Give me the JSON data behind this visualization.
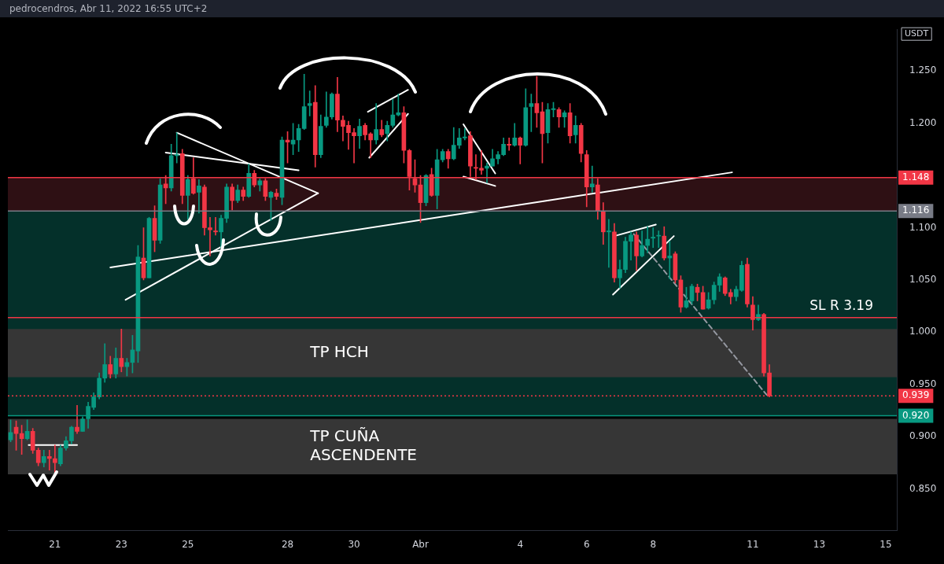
{
  "chart_data": {
    "type": "candlestick",
    "title": "pedrocendros, Abr 11, 2022 16:55 UTC+2",
    "ylabel": "USDT",
    "x": [
      "2022-03-19T16:00",
      "2022-03-19T20:00",
      "2022-03-20T00:00",
      "2022-03-20T04:00",
      "2022-03-20T08:00",
      "2022-03-20T12:00",
      "2022-03-20T16:00",
      "2022-03-20T20:00",
      "2022-03-21T00:00",
      "2022-03-21T04:00",
      "2022-03-21T08:00",
      "2022-03-21T12:00",
      "2022-03-21T16:00",
      "2022-03-21T20:00",
      "2022-03-22T00:00",
      "2022-03-22T04:00",
      "2022-03-22T08:00",
      "2022-03-22T12:00",
      "2022-03-22T16:00",
      "2022-03-22T20:00",
      "2022-03-23T00:00",
      "2022-03-23T04:00",
      "2022-03-23T08:00",
      "2022-03-23T12:00",
      "2022-03-23T16:00",
      "2022-03-23T20:00",
      "2022-03-24T00:00",
      "2022-03-24T04:00",
      "2022-03-24T08:00",
      "2022-03-24T12:00",
      "2022-03-24T16:00",
      "2022-03-24T20:00",
      "2022-03-25T00:00",
      "2022-03-25T04:00",
      "2022-03-25T08:00",
      "2022-03-25T12:00",
      "2022-03-25T16:00",
      "2022-03-25T20:00",
      "2022-03-26T00:00",
      "2022-03-26T04:00",
      "2022-03-26T08:00",
      "2022-03-26T12:00",
      "2022-03-26T16:00",
      "2022-03-26T20:00",
      "2022-03-27T00:00",
      "2022-03-27T04:00",
      "2022-03-27T08:00",
      "2022-03-27T12:00",
      "2022-03-27T16:00",
      "2022-03-27T20:00",
      "2022-03-28T00:00",
      "2022-03-28T04:00",
      "2022-03-28T08:00",
      "2022-03-28T12:00",
      "2022-03-28T16:00",
      "2022-03-28T20:00",
      "2022-03-29T00:00",
      "2022-03-29T04:00",
      "2022-03-29T08:00",
      "2022-03-29T12:00",
      "2022-03-29T16:00",
      "2022-03-29T20:00",
      "2022-03-30T00:00",
      "2022-03-30T04:00",
      "2022-03-30T08:00",
      "2022-03-30T12:00",
      "2022-03-30T16:00",
      "2022-03-30T20:00",
      "2022-03-31T00:00",
      "2022-03-31T04:00",
      "2022-03-31T08:00",
      "2022-03-31T12:00",
      "2022-03-31T16:00",
      "2022-03-31T20:00",
      "2022-04-01T00:00",
      "2022-04-01T04:00",
      "2022-04-01T08:00",
      "2022-04-01T12:00",
      "2022-04-01T16:00",
      "2022-04-01T20:00",
      "2022-04-02T00:00",
      "2022-04-02T04:00",
      "2022-04-02T08:00",
      "2022-04-02T12:00",
      "2022-04-02T16:00",
      "2022-04-02T20:00",
      "2022-04-03T00:00",
      "2022-04-03T04:00",
      "2022-04-03T08:00",
      "2022-04-03T12:00",
      "2022-04-03T16:00",
      "2022-04-03T20:00",
      "2022-04-04T00:00",
      "2022-04-04T04:00",
      "2022-04-04T08:00",
      "2022-04-04T12:00",
      "2022-04-04T16:00",
      "2022-04-04T20:00",
      "2022-04-05T00:00",
      "2022-04-05T04:00",
      "2022-04-05T08:00",
      "2022-04-05T12:00",
      "2022-04-05T16:00",
      "2022-04-05T20:00",
      "2022-04-06T00:00",
      "2022-04-06T04:00",
      "2022-04-06T08:00",
      "2022-04-06T12:00",
      "2022-04-06T16:00",
      "2022-04-06T20:00",
      "2022-04-07T00:00",
      "2022-04-07T04:00",
      "2022-04-07T08:00",
      "2022-04-07T12:00",
      "2022-04-07T16:00",
      "2022-04-07T20:00",
      "2022-04-08T00:00",
      "2022-04-08T04:00",
      "2022-04-08T08:00",
      "2022-04-08T12:00",
      "2022-04-08T16:00",
      "2022-04-08T20:00",
      "2022-04-09T00:00",
      "2022-04-09T04:00",
      "2022-04-09T08:00",
      "2022-04-09T12:00",
      "2022-04-09T16:00",
      "2022-04-09T20:00",
      "2022-04-10T00:00",
      "2022-04-10T04:00",
      "2022-04-10T08:00",
      "2022-04-10T12:00",
      "2022-04-10T16:00",
      "2022-04-10T20:00",
      "2022-04-11T00:00",
      "2022-04-11T04:00",
      "2022-04-11T08:00",
      "2022-04-11T12:00"
    ],
    "ohlc": [
      [
        0.897,
        0.916,
        0.895,
        0.904
      ],
      [
        0.909,
        0.915,
        0.887,
        0.903
      ],
      [
        0.903,
        0.911,
        0.883,
        0.898
      ],
      [
        0.898,
        0.916,
        0.897,
        0.905
      ],
      [
        0.905,
        0.908,
        0.884,
        0.887
      ],
      [
        0.887,
        0.889,
        0.872,
        0.875
      ],
      [
        0.875,
        0.887,
        0.871,
        0.881
      ],
      [
        0.881,
        0.887,
        0.868,
        0.879
      ],
      [
        0.879,
        0.892,
        0.864,
        0.875
      ],
      [
        0.874,
        0.892,
        0.872,
        0.889
      ],
      [
        0.889,
        0.9,
        0.887,
        0.896
      ],
      [
        0.896,
        0.91,
        0.893,
        0.909
      ],
      [
        0.909,
        0.93,
        0.903,
        0.905
      ],
      [
        0.905,
        0.919,
        0.905,
        0.917
      ],
      [
        0.917,
        0.933,
        0.908,
        0.929
      ],
      [
        0.928,
        0.942,
        0.926,
        0.938
      ],
      [
        0.938,
        0.961,
        0.936,
        0.956
      ],
      [
        0.956,
        0.989,
        0.952,
        0.969
      ],
      [
        0.969,
        0.977,
        0.956,
        0.96
      ],
      [
        0.96,
        0.985,
        0.956,
        0.975
      ],
      [
        0.975,
        1.003,
        0.962,
        0.967
      ],
      [
        0.967,
        0.975,
        0.958,
        0.971
      ],
      [
        0.971,
        0.997,
        0.961,
        0.983
      ],
      [
        0.982,
        1.083,
        0.971,
        1.072
      ],
      [
        1.071,
        1.1,
        1.05,
        1.052
      ],
      [
        1.052,
        1.11,
        1.052,
        1.109
      ],
      [
        1.109,
        1.121,
        1.077,
        1.088
      ],
      [
        1.088,
        1.147,
        1.085,
        1.141
      ],
      [
        1.142,
        1.15,
        1.123,
        1.138
      ],
      [
        1.138,
        1.18,
        1.135,
        1.169
      ],
      [
        1.169,
        1.191,
        1.162,
        1.17
      ],
      [
        1.171,
        1.175,
        1.123,
        1.131
      ],
      [
        1.131,
        1.15,
        1.108,
        1.146
      ],
      [
        1.147,
        1.167,
        1.132,
        1.133
      ],
      [
        1.134,
        1.146,
        1.114,
        1.14
      ],
      [
        1.139,
        1.141,
        1.093,
        1.1
      ],
      [
        1.1,
        1.11,
        1.073,
        1.098
      ],
      [
        1.097,
        1.11,
        1.093,
        1.096
      ],
      [
        1.096,
        1.112,
        1.081,
        1.109
      ],
      [
        1.109,
        1.142,
        1.105,
        1.139
      ],
      [
        1.139,
        1.142,
        1.117,
        1.126
      ],
      [
        1.126,
        1.141,
        1.124,
        1.136
      ],
      [
        1.136,
        1.139,
        1.126,
        1.13
      ],
      [
        1.13,
        1.161,
        1.129,
        1.152
      ],
      [
        1.152,
        1.155,
        1.139,
        1.141
      ],
      [
        1.141,
        1.147,
        1.135,
        1.145
      ],
      [
        1.145,
        1.147,
        1.126,
        1.13
      ],
      [
        1.129,
        1.135,
        1.107,
        1.134
      ],
      [
        1.133,
        1.137,
        1.127,
        1.13
      ],
      [
        1.129,
        1.187,
        1.122,
        1.184
      ],
      [
        1.184,
        1.192,
        1.162,
        1.182
      ],
      [
        1.18,
        1.2,
        1.17,
        1.184
      ],
      [
        1.184,
        1.199,
        1.173,
        1.195
      ],
      [
        1.195,
        1.247,
        1.194,
        1.216
      ],
      [
        1.217,
        1.231,
        1.207,
        1.219
      ],
      [
        1.22,
        1.236,
        1.158,
        1.17
      ],
      [
        1.17,
        1.208,
        1.167,
        1.197
      ],
      [
        1.198,
        1.23,
        1.196,
        1.206
      ],
      [
        1.206,
        1.229,
        1.204,
        1.228
      ],
      [
        1.228,
        1.244,
        1.192,
        1.203
      ],
      [
        1.203,
        1.207,
        1.183,
        1.197
      ],
      [
        1.198,
        1.202,
        1.175,
        1.191
      ],
      [
        1.191,
        1.195,
        1.162,
        1.188
      ],
      [
        1.188,
        1.204,
        1.176,
        1.197
      ],
      [
        1.198,
        1.2,
        1.184,
        1.189
      ],
      [
        1.19,
        1.191,
        1.167,
        1.184
      ],
      [
        1.184,
        1.219,
        1.18,
        1.194
      ],
      [
        1.194,
        1.203,
        1.187,
        1.189
      ],
      [
        1.19,
        1.202,
        1.183,
        1.198
      ],
      [
        1.198,
        1.223,
        1.196,
        1.208
      ],
      [
        1.208,
        1.228,
        1.207,
        1.21
      ],
      [
        1.21,
        1.216,
        1.162,
        1.174
      ],
      [
        1.174,
        1.175,
        1.136,
        1.149
      ],
      [
        1.147,
        1.165,
        1.134,
        1.141
      ],
      [
        1.141,
        1.15,
        1.105,
        1.124
      ],
      [
        1.124,
        1.151,
        1.121,
        1.15
      ],
      [
        1.151,
        1.157,
        1.13,
        1.131
      ],
      [
        1.131,
        1.175,
        1.118,
        1.165
      ],
      [
        1.165,
        1.175,
        1.163,
        1.173
      ],
      [
        1.173,
        1.175,
        1.157,
        1.166
      ],
      [
        1.166,
        1.196,
        1.165,
        1.179
      ],
      [
        1.179,
        1.195,
        1.176,
        1.186
      ],
      [
        1.186,
        1.195,
        1.184,
        1.187
      ],
      [
        1.188,
        1.192,
        1.149,
        1.159
      ],
      [
        1.157,
        1.17,
        1.146,
        1.157
      ],
      [
        1.157,
        1.174,
        1.151,
        1.155
      ],
      [
        1.157,
        1.162,
        1.143,
        1.159
      ],
      [
        1.159,
        1.175,
        1.159,
        1.166
      ],
      [
        1.166,
        1.173,
        1.161,
        1.17
      ],
      [
        1.17,
        1.186,
        1.169,
        1.18
      ],
      [
        1.18,
        1.186,
        1.174,
        1.179
      ],
      [
        1.179,
        1.2,
        1.178,
        1.186
      ],
      [
        1.186,
        1.187,
        1.161,
        1.179
      ],
      [
        1.179,
        1.233,
        1.178,
        1.215
      ],
      [
        1.216,
        1.228,
        1.192,
        1.219
      ],
      [
        1.219,
        1.245,
        1.196,
        1.21
      ],
      [
        1.211,
        1.22,
        1.162,
        1.19
      ],
      [
        1.191,
        1.219,
        1.181,
        1.213
      ],
      [
        1.213,
        1.22,
        1.206,
        1.214
      ],
      [
        1.213,
        1.215,
        1.196,
        1.206
      ],
      [
        1.206,
        1.212,
        1.196,
        1.21
      ],
      [
        1.21,
        1.219,
        1.181,
        1.188
      ],
      [
        1.189,
        1.207,
        1.181,
        1.198
      ],
      [
        1.198,
        1.2,
        1.163,
        1.171
      ],
      [
        1.17,
        1.174,
        1.12,
        1.139
      ],
      [
        1.139,
        1.159,
        1.134,
        1.142
      ],
      [
        1.141,
        1.147,
        1.108,
        1.116
      ],
      [
        1.116,
        1.124,
        1.084,
        1.096
      ],
      [
        1.096,
        1.108,
        1.062,
        1.097
      ],
      [
        1.096,
        1.104,
        1.048,
        1.052
      ],
      [
        1.052,
        1.069,
        1.042,
        1.06
      ],
      [
        1.06,
        1.091,
        1.057,
        1.087
      ],
      [
        1.087,
        1.096,
        1.069,
        1.093
      ],
      [
        1.093,
        1.096,
        1.059,
        1.073
      ],
      [
        1.073,
        1.097,
        1.072,
        1.083
      ],
      [
        1.083,
        1.101,
        1.076,
        1.089
      ],
      [
        1.09,
        1.1,
        1.081,
        1.091
      ],
      [
        1.092,
        1.097,
        1.081,
        1.092
      ],
      [
        1.092,
        1.101,
        1.069,
        1.071
      ],
      [
        1.071,
        1.087,
        1.051,
        1.073
      ],
      [
        1.075,
        1.077,
        1.047,
        1.05
      ],
      [
        1.05,
        1.054,
        1.019,
        1.024
      ],
      [
        1.024,
        1.043,
        1.023,
        1.03
      ],
      [
        1.03,
        1.046,
        1.027,
        1.044
      ],
      [
        1.043,
        1.046,
        1.03,
        1.038
      ],
      [
        1.038,
        1.044,
        1.022,
        1.022
      ],
      [
        1.023,
        1.038,
        1.022,
        1.031
      ],
      [
        1.031,
        1.048,
        1.027,
        1.045
      ],
      [
        1.045,
        1.056,
        1.039,
        1.053
      ],
      [
        1.052,
        1.053,
        1.035,
        1.037
      ],
      [
        1.038,
        1.041,
        1.027,
        1.034
      ],
      [
        1.034,
        1.044,
        1.03,
        1.041
      ],
      [
        1.04,
        1.068,
        1.039,
        1.064
      ],
      [
        1.065,
        1.071,
        1.024,
        1.027
      ],
      [
        1.026,
        1.034,
        1.002,
        1.012
      ],
      [
        1.012,
        1.026,
        1.011,
        1.017
      ],
      [
        1.017,
        1.018,
        0.958,
        0.961
      ],
      [
        0.961,
        0.969,
        0.938,
        0.939
      ]
    ],
    "colors": [
      "#089981",
      "#f23645",
      "#f23645",
      "#089981",
      "#f23645",
      "#f23645",
      "#089981",
      "#f23645",
      "#f23645",
      "#089981",
      "#089981",
      "#089981",
      "#f23645",
      "#089981",
      "#089981",
      "#089981",
      "#089981",
      "#089981",
      "#f23645",
      "#089981",
      "#f23645",
      "#089981",
      "#089981",
      "#089981",
      "#f23645",
      "#089981",
      "#f23645",
      "#089981",
      "#f23645",
      "#089981",
      "#089981",
      "#f23645",
      "#089981",
      "#f23645",
      "#089981",
      "#f23645",
      "#f23645",
      "#f23645",
      "#089981",
      "#089981",
      "#f23645",
      "#089981",
      "#f23645",
      "#089981",
      "#f23645",
      "#089981",
      "#f23645",
      "#089981",
      "#f23645",
      "#089981",
      "#f23645",
      "#089981",
      "#089981",
      "#089981",
      "#089981",
      "#f23645",
      "#089981",
      "#089981",
      "#089981",
      "#f23645",
      "#f23645",
      "#f23645",
      "#f23645",
      "#089981",
      "#f23645",
      "#f23645",
      "#089981",
      "#f23645",
      "#089981",
      "#089981",
      "#089981",
      "#f23645",
      "#f23645",
      "#f23645",
      "#f23645",
      "#089981",
      "#f23645",
      "#089981",
      "#089981",
      "#f23645",
      "#089981",
      "#089981",
      "#089981",
      "#f23645",
      "#f23645",
      "#f23645",
      "#089981",
      "#089981",
      "#089981",
      "#089981",
      "#f23645",
      "#089981",
      "#f23645",
      "#089981",
      "#089981",
      "#f23645",
      "#f23645",
      "#089981",
      "#089981",
      "#f23645",
      "#089981",
      "#f23645",
      "#089981",
      "#f23645",
      "#f23645",
      "#089981",
      "#f23645",
      "#f23645",
      "#089981",
      "#f23645",
      "#089981",
      "#089981",
      "#089981",
      "#f23645",
      "#089981",
      "#089981",
      "#089981",
      "#089981",
      "#f23645",
      "#089981",
      "#f23645",
      "#f23645",
      "#089981",
      "#089981",
      "#f23645",
      "#f23645",
      "#089981",
      "#089981",
      "#089981",
      "#f23645",
      "#f23645",
      "#089981",
      "#089981",
      "#f23645",
      "#f23645",
      "#089981",
      "#f23645",
      "#f23645"
    ],
    "xlim": [
      "2022-03-19T14:00",
      "2022-04-15T08:00"
    ],
    "ylim": [
      0.81,
      1.29
    ],
    "xticks": [
      {
        "value": "2022-03-21",
        "label": "21"
      },
      {
        "value": "2022-03-23",
        "label": "23"
      },
      {
        "value": "2022-03-25",
        "label": "25"
      },
      {
        "value": "2022-03-28",
        "label": "28"
      },
      {
        "value": "2022-03-30",
        "label": "30"
      },
      {
        "value": "2022-04-01",
        "label": "Abr"
      },
      {
        "value": "2022-04-04",
        "label": "4"
      },
      {
        "value": "2022-04-06",
        "label": "6"
      },
      {
        "value": "2022-04-08",
        "label": "8"
      },
      {
        "value": "2022-04-11",
        "label": "11"
      },
      {
        "value": "2022-04-13",
        "label": "13"
      },
      {
        "value": "2022-04-15",
        "label": "15"
      }
    ],
    "yticks": [
      {
        "value": 0.85,
        "label": "0.850"
      },
      {
        "value": 0.9,
        "label": "0.900"
      },
      {
        "value": 0.95,
        "label": "0.950"
      },
      {
        "value": 1.0,
        "label": "1.000"
      },
      {
        "value": 1.05,
        "label": "1.050"
      },
      {
        "value": 1.1,
        "label": "1.100"
      },
      {
        "value": 1.2,
        "label": "1.200"
      },
      {
        "value": 1.25,
        "label": "1.250"
      }
    ],
    "bands": [
      {
        "axis": "y",
        "from": 0.92,
        "to": 1.116,
        "color": "#04302a"
      },
      {
        "axis": "y",
        "from": 1.116,
        "to": 1.148,
        "color": "#2e1014"
      },
      {
        "axis": "y",
        "from": 0.957,
        "to": 1.003,
        "color": "#363636",
        "label": "TP HCH"
      },
      {
        "axis": "y",
        "from": 0.864,
        "to": 0.917,
        "color": "#363636",
        "label": "TP CUÑA ASCENDENTE"
      }
    ],
    "ref_lines": [
      {
        "axis": "y",
        "value": 1.148,
        "label": "1.148",
        "color": "#f23645"
      },
      {
        "axis": "y",
        "value": 1.116,
        "label": "1.116",
        "color": "#787b86"
      },
      {
        "axis": "y",
        "value": 1.014,
        "label": "SL R 3.19",
        "color": "#f23645"
      },
      {
        "axis": "y",
        "value": 0.939,
        "label": "0.939",
        "color": "#f23645",
        "line_style": "dotted"
      },
      {
        "axis": "y",
        "value": 0.92,
        "label": "0.920",
        "color": "#089981"
      }
    ],
    "series": [
      {
        "type": "line",
        "x": [
          "2022-03-22T16:00",
          "2022-04-10T09:00"
        ],
        "values": [
          1.062,
          1.153
        ],
        "color": "#ffffff"
      },
      {
        "type": "line",
        "x": [
          "2022-03-23T03:00",
          "2022-03-28T22:00"
        ],
        "values": [
          1.031,
          1.133
        ],
        "color": "#ffffff"
      },
      {
        "type": "line",
        "x": [
          "2022-03-24T16:00",
          "2022-03-28T22:00"
        ],
        "values": [
          1.191,
          1.133
        ],
        "color": "#ffffff"
      },
      {
        "type": "line",
        "x": [
          "2022-03-24T08:00",
          "2022-03-28T08:00"
        ],
        "values": [
          1.172,
          1.155
        ],
        "color": "#ffffff"
      },
      {
        "type": "line",
        "x": [
          "2022-03-30T10:00",
          "2022-03-31T15:00"
        ],
        "values": [
          1.211,
          1.232
        ],
        "color": "#ffffff"
      },
      {
        "type": "line",
        "x": [
          "2022-03-30T11:00",
          "2022-03-31T15:00"
        ],
        "values": [
          1.167,
          1.209
        ],
        "color": "#ffffff"
      },
      {
        "type": "line",
        "x": [
          "2022-04-02T07:00",
          "2022-04-03T06:00"
        ],
        "values": [
          1.199,
          1.152
        ],
        "color": "#ffffff"
      },
      {
        "type": "line",
        "x": [
          "2022-04-02T07:00",
          "2022-04-03T06:00"
        ],
        "values": [
          1.149,
          1.14
        ],
        "color": "#ffffff"
      },
      {
        "type": "line",
        "x": [
          "2022-04-06T20:00",
          "2022-04-08T02:00"
        ],
        "values": [
          1.092,
          1.103
        ],
        "color": "#ffffff"
      },
      {
        "type": "line",
        "x": [
          "2022-04-06T19:00",
          "2022-04-08T15:00"
        ],
        "values": [
          1.036,
          1.092
        ],
        "color": "#ffffff"
      },
      {
        "type": "line",
        "x": [
          "2022-03-20T05:00",
          "2022-03-21T16:00"
        ],
        "values": [
          0.892,
          0.892
        ],
        "color": "#ffffff"
      },
      {
        "type": "line",
        "x": [
          "2022-04-07T10:00",
          "2022-04-11T10:00"
        ],
        "values": [
          1.094,
          0.94
        ],
        "color": "#9598a1",
        "line_style": "dashed"
      }
    ]
  }
}
